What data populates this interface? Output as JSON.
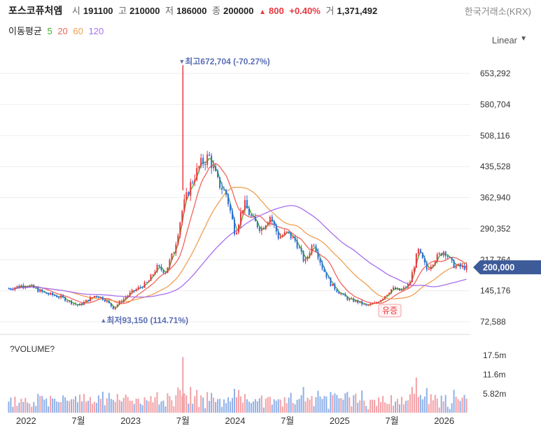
{
  "header": {
    "name": "포스코퓨처엠",
    "open_label": "시",
    "open": "191100",
    "high_label": "고",
    "high": "210000",
    "low_label": "저",
    "low": "186000",
    "close_label": "종",
    "close": "200000",
    "change_icon": "up-triangle",
    "change": "800",
    "change_pct": "+0.40%",
    "volume_label": "거",
    "volume": "1,371,492",
    "exchange": "한국거래소(KRX)"
  },
  "ma": {
    "title": "이동평균",
    "items": [
      {
        "period": "5",
        "color": "#3fae2a"
      },
      {
        "period": "20",
        "color": "#f0645c"
      },
      {
        "period": "60",
        "color": "#f0a050"
      },
      {
        "period": "120",
        "color": "#a86ef0"
      }
    ]
  },
  "controls": {
    "scale": "Linear",
    "scale_icon": "chevron-down-icon"
  },
  "annotations": {
    "high_label": "최고",
    "high_value": "672,704",
    "high_pct": "(-70.27%)",
    "low_label": "최저",
    "low_value": "93,150",
    "low_pct": "(114.71%)",
    "rights_issue": "유증",
    "current_price": "200,000"
  },
  "colors": {
    "up": "#e8373e",
    "down": "#2f6fd8",
    "volume": "#f08a90",
    "grid": "#eeeeee",
    "price_tag": "#3d5a99",
    "annotation": "#5b6fb5"
  },
  "chart_data": {
    "type": "candlestick",
    "price_axis": {
      "ticks": [
        "653,292",
        "580,704",
        "508,116",
        "435,528",
        "362,940",
        "290,352",
        "217,764",
        "145,176",
        "72,588"
      ],
      "tick_values": [
        653292,
        580704,
        508116,
        435528,
        362940,
        290352,
        217764,
        145176,
        72588
      ]
    },
    "x_ticks": [
      "2022",
      "7월",
      "2023",
      "7월",
      "2024",
      "7월",
      "2025",
      "7월",
      "2026"
    ],
    "volume_label": "?VOLUME?",
    "volume_ticks": [
      "17.5m",
      "11.6m",
      "5.82m"
    ],
    "volume_tick_values": [
      17.5,
      11.6,
      5.82
    ],
    "time": [
      "2021-11",
      "2022-01",
      "2022-03",
      "2022-05",
      "2022-07",
      "2022-09",
      "2022-10",
      "2022-11",
      "2023-01",
      "2023-03",
      "2023-04",
      "2023-05",
      "2023-06",
      "2023-07",
      "2023-08",
      "2023-09",
      "2023-10",
      "2023-11",
      "2023-12",
      "2024-01",
      "2024-02",
      "2024-03",
      "2024-04",
      "2024-05",
      "2024-06",
      "2024-07",
      "2024-08",
      "2024-09",
      "2024-10",
      "2024-11",
      "2024-12",
      "2025-01",
      "2025-02",
      "2025-03",
      "2025-04",
      "2025-05",
      "2025-06",
      "2025-07",
      "2025-08",
      "2025-09",
      "2025-10",
      "2025-11",
      "2025-12",
      "2026-01",
      "2026-02",
      "2026-03"
    ],
    "close": [
      150000,
      160000,
      140000,
      130000,
      110000,
      135000,
      125000,
      105000,
      140000,
      165000,
      200000,
      190000,
      240000,
      340000,
      400000,
      440000,
      460000,
      400000,
      370000,
      280000,
      350000,
      310000,
      290000,
      320000,
      270000,
      280000,
      260000,
      210000,
      260000,
      200000,
      160000,
      140000,
      125000,
      120000,
      110000,
      115000,
      130000,
      150000,
      145000,
      160000,
      240000,
      195000,
      220000,
      240000,
      205000,
      200000
    ],
    "high_point": {
      "date": "2023-07",
      "value": 672704
    },
    "low_point": {
      "date": "2022-10",
      "value": 93150
    },
    "last_price": 200000
  }
}
